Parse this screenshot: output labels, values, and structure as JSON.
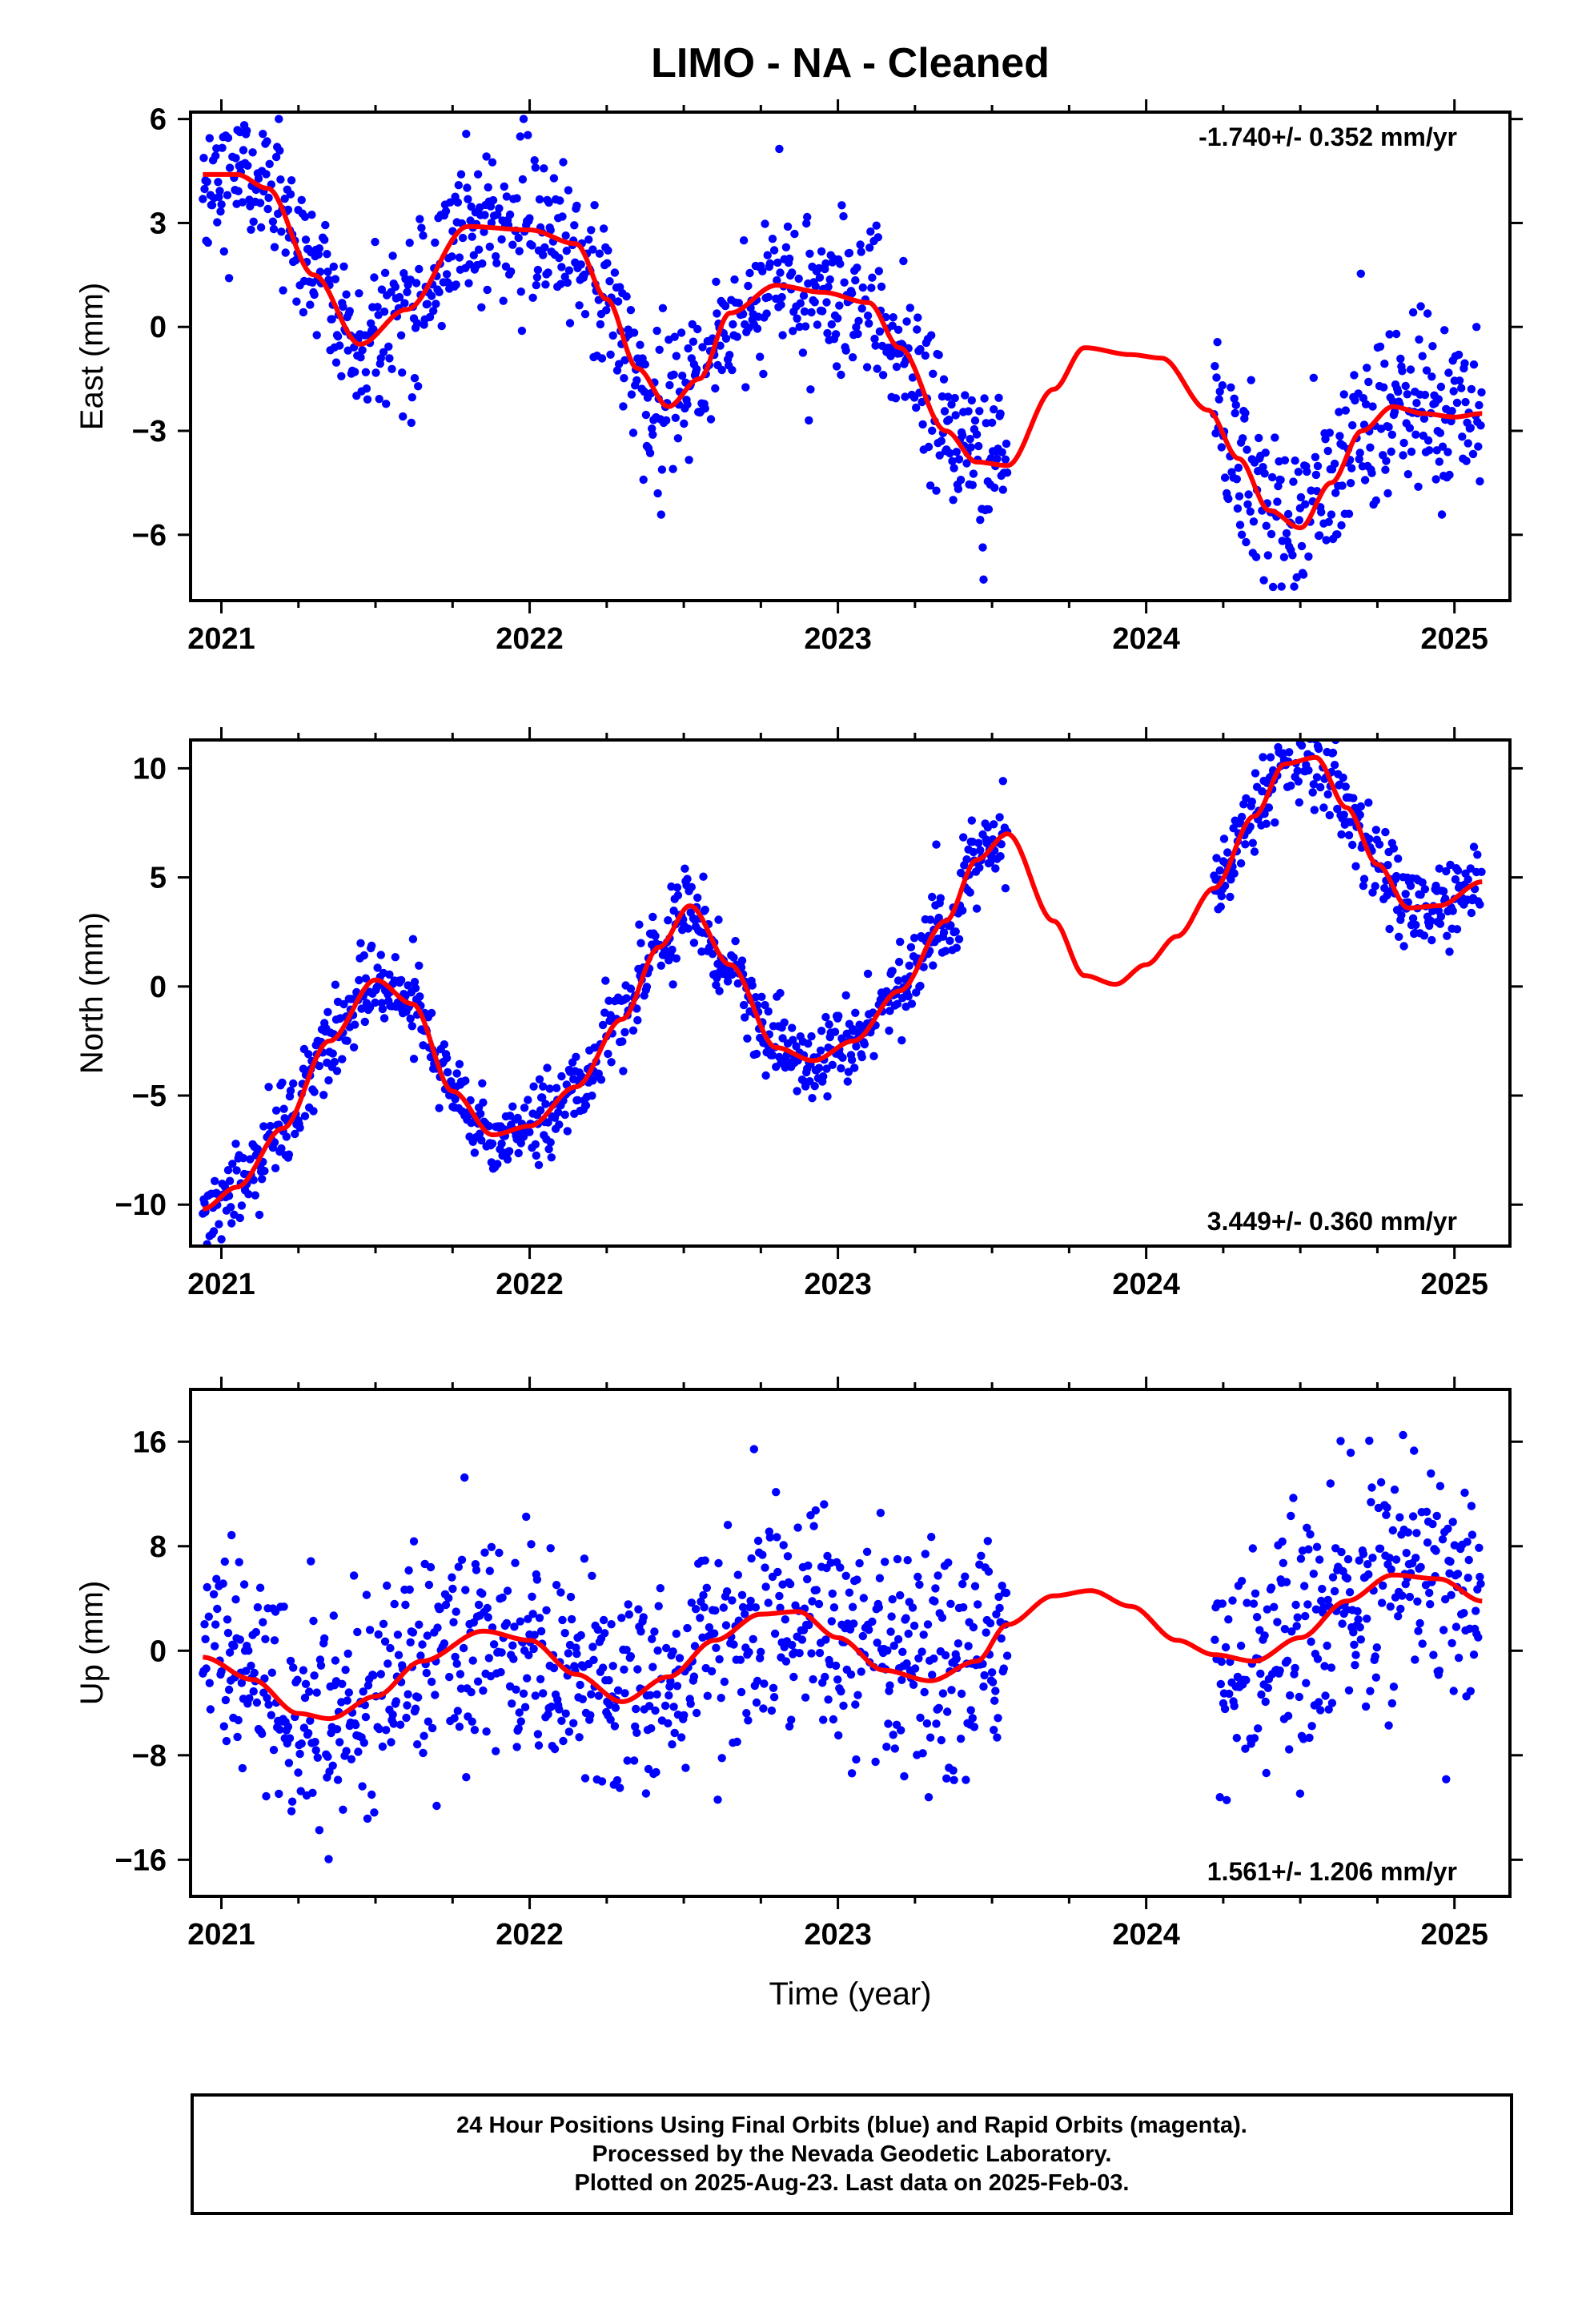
{
  "figure": {
    "title": "LIMO  - NA - Cleaned",
    "xlabel": "Time (year)",
    "footer": [
      "24 Hour Positions Using Final Orbits (blue) and Rapid Orbits (magenta).",
      "Processed by the Nevada Geodetic Laboratory.",
      "Plotted on 2025-Aug-23. Last data on 2025-Feb-03."
    ]
  },
  "colors": {
    "observations": "#0000ff",
    "model": "#ff0000",
    "frame": "#000000"
  },
  "chart_data": [
    {
      "type": "scatter",
      "ylabel": "East (mm)",
      "rate_text": "-1.740+/- 0.352 mm/yr",
      "rate_position": "top-right",
      "xlim": [
        2020.9,
        2025.18
      ],
      "ylim": [
        -7.9,
        6.2
      ],
      "xticks": [
        2021,
        2022,
        2023,
        2024,
        2025
      ],
      "xtick_labels": [
        "2021",
        "2022",
        "2023",
        "2024",
        "2025"
      ],
      "yticks": [
        -6,
        -3,
        0,
        3,
        6
      ],
      "ytick_labels": [
        "−6",
        "−3",
        "0",
        "3",
        "6"
      ],
      "data_segments": [
        [
          2020.94,
          2021.89
        ],
        [
          2021.89,
          2022.27
        ],
        [
          2022.27,
          2023.55
        ],
        [
          2024.22,
          2025.09
        ]
      ],
      "series": [
        {
          "kind": "observations",
          "model_knots": {
            "x": [
              2020.94,
              2021.05,
              2021.15,
              2021.3,
              2021.45,
              2021.6,
              2021.8,
              2022.0,
              2022.15,
              2022.25,
              2022.35,
              2022.45,
              2022.55,
              2022.65,
              2022.8,
              2022.95,
              2023.1,
              2023.2,
              2023.35,
              2023.45,
              2023.55
            ],
            "y": [
              4.4,
              4.4,
              4.0,
              1.5,
              -0.5,
              0.5,
              2.9,
              2.8,
              2.4,
              0.8,
              -1.2,
              -2.3,
              -1.5,
              0.4,
              1.2,
              1.0,
              0.7,
              -0.6,
              -3.0,
              -3.9,
              -4.0
            ]
          },
          "scatter_sigma": 1.1
        },
        {
          "kind": "observations",
          "model_knots": {
            "x": [
              2024.22,
              2024.3,
              2024.4,
              2024.5,
              2024.6,
              2024.7,
              2024.8,
              2024.9,
              2025.0,
              2025.09
            ],
            "y": [
              -2.5,
              -3.8,
              -5.3,
              -5.8,
              -4.5,
              -3.0,
              -2.3,
              -2.5,
              -2.6,
              -2.5
            ]
          },
          "scatter_sigma": 1.2
        },
        {
          "kind": "model",
          "x": [
            2020.94,
            2021.05,
            2021.15,
            2021.3,
            2021.45,
            2021.6,
            2021.8,
            2022.0,
            2022.15,
            2022.25,
            2022.35,
            2022.45,
            2022.55,
            2022.65,
            2022.8,
            2022.95,
            2023.1,
            2023.2,
            2023.35,
            2023.45,
            2023.55,
            2023.7,
            2023.8,
            2023.95,
            2024.05,
            2024.2,
            2024.3,
            2024.4,
            2024.5,
            2024.6,
            2024.7,
            2024.8,
            2024.9,
            2025.0,
            2025.09
          ],
          "y": [
            4.4,
            4.4,
            4.0,
            1.5,
            -0.5,
            0.5,
            2.9,
            2.8,
            2.4,
            0.8,
            -1.2,
            -2.3,
            -1.5,
            0.4,
            1.2,
            1.0,
            0.7,
            -0.6,
            -3.0,
            -3.9,
            -4.0,
            -1.8,
            -0.6,
            -0.8,
            -0.9,
            -2.4,
            -3.8,
            -5.3,
            -5.8,
            -4.5,
            -3.0,
            -2.3,
            -2.5,
            -2.6,
            -2.5
          ]
        }
      ]
    },
    {
      "type": "scatter",
      "ylabel": "North (mm)",
      "rate_text": "3.449+/- 0.360 mm/yr",
      "rate_position": "bottom-right",
      "xlim": [
        2020.9,
        2025.18
      ],
      "ylim": [
        -11.9,
        11.3
      ],
      "xticks": [
        2021,
        2022,
        2023,
        2024,
        2025
      ],
      "xtick_labels": [
        "2021",
        "2022",
        "2023",
        "2024",
        "2025"
      ],
      "yticks": [
        -10,
        -5,
        0,
        5,
        10
      ],
      "ytick_labels": [
        "−10",
        "−5",
        "0",
        "5",
        "10"
      ],
      "data_segments": [
        [
          2020.94,
          2021.89
        ],
        [
          2021.89,
          2022.27
        ],
        [
          2022.27,
          2023.55
        ],
        [
          2024.22,
          2025.09
        ]
      ],
      "series": [
        {
          "kind": "observations",
          "model_knots": {
            "x": [
              2020.94,
              2021.05,
              2021.2,
              2021.35,
              2021.5,
              2021.62,
              2021.75,
              2021.88,
              2022.0,
              2022.15,
              2022.3,
              2022.42,
              2022.52,
              2022.65,
              2022.8,
              2022.92,
              2023.05,
              2023.2,
              2023.35,
              2023.45,
              2023.55
            ],
            "y": [
              -10.2,
              -9.2,
              -6.5,
              -2.5,
              0.3,
              -0.8,
              -4.8,
              -6.8,
              -6.4,
              -4.6,
              -1.5,
              1.8,
              3.7,
              1.0,
              -2.8,
              -3.4,
              -2.5,
              -0.2,
              3.0,
              5.8,
              7.0
            ]
          },
          "scatter_sigma": 0.9
        },
        {
          "kind": "observations",
          "model_knots": {
            "x": [
              2024.22,
              2024.35,
              2024.45,
              2024.55,
              2024.65,
              2024.75,
              2024.85,
              2024.95,
              2025.09
            ],
            "y": [
              4.5,
              7.8,
              10.2,
              10.5,
              8.2,
              5.6,
              3.6,
              3.7,
              4.8
            ]
          },
          "scatter_sigma": 1.0
        },
        {
          "kind": "model",
          "x": [
            2020.94,
            2021.05,
            2021.2,
            2021.35,
            2021.5,
            2021.62,
            2021.75,
            2021.88,
            2022.0,
            2022.15,
            2022.3,
            2022.42,
            2022.52,
            2022.65,
            2022.8,
            2022.92,
            2023.05,
            2023.2,
            2023.35,
            2023.45,
            2023.55,
            2023.7,
            2023.8,
            2023.9,
            2024.0,
            2024.1,
            2024.22,
            2024.35,
            2024.45,
            2024.55,
            2024.65,
            2024.75,
            2024.85,
            2024.95,
            2025.09
          ],
          "y": [
            -10.2,
            -9.2,
            -6.5,
            -2.5,
            0.3,
            -0.8,
            -4.8,
            -6.8,
            -6.4,
            -4.6,
            -1.5,
            1.8,
            3.7,
            1.0,
            -2.8,
            -3.4,
            -2.5,
            -0.2,
            3.0,
            5.8,
            7.0,
            3.0,
            0.5,
            0.1,
            1.0,
            2.3,
            4.5,
            7.8,
            10.2,
            10.5,
            8.2,
            5.6,
            3.6,
            3.7,
            4.8
          ]
        }
      ]
    },
    {
      "type": "scatter",
      "ylabel": "Up (mm)",
      "rate_text": "1.561+/- 1.206 mm/yr",
      "rate_position": "bottom-right",
      "xlim": [
        2020.9,
        2025.18
      ],
      "ylim": [
        -18.8,
        20.0
      ],
      "xticks": [
        2021,
        2022,
        2023,
        2024,
        2025
      ],
      "xtick_labels": [
        "2021",
        "2022",
        "2023",
        "2024",
        "2025"
      ],
      "yticks": [
        -16,
        -8,
        0,
        8,
        16
      ],
      "ytick_labels": [
        "−16",
        "−8",
        "0",
        "8",
        "16"
      ],
      "data_segments": [
        [
          2020.94,
          2021.89
        ],
        [
          2021.89,
          2022.27
        ],
        [
          2022.27,
          2023.55
        ],
        [
          2024.22,
          2025.09
        ]
      ],
      "series": [
        {
          "kind": "observations",
          "model_knots": {
            "x": [
              2020.94,
              2021.1,
              2021.25,
              2021.35,
              2021.5,
              2021.65,
              2021.85,
              2022.0,
              2022.15,
              2022.3,
              2022.45,
              2022.6,
              2022.75,
              2022.87,
              2023.0,
              2023.15,
              2023.3,
              2023.45,
              2023.55
            ],
            "y": [
              -0.5,
              -2.2,
              -4.8,
              -5.2,
              -3.5,
              -0.8,
              1.5,
              0.8,
              -1.8,
              -3.9,
              -2.0,
              0.8,
              2.8,
              3.0,
              1.0,
              -1.5,
              -2.3,
              -0.8,
              2.0
            ]
          },
          "scatter_sigma": 4.2
        },
        {
          "kind": "observations",
          "model_knots": {
            "x": [
              2024.22,
              2024.35,
              2024.5,
              2024.65,
              2024.8,
              2024.95,
              2025.09
            ],
            "y": [
              -0.3,
              -0.8,
              1.0,
              3.8,
              5.8,
              5.5,
              3.8
            ]
          },
          "scatter_sigma": 4.5
        },
        {
          "kind": "model",
          "x": [
            2020.94,
            2021.1,
            2021.25,
            2021.35,
            2021.5,
            2021.65,
            2021.85,
            2022.0,
            2022.15,
            2022.3,
            2022.45,
            2022.6,
            2022.75,
            2022.87,
            2023.0,
            2023.15,
            2023.3,
            2023.45,
            2023.55,
            2023.7,
            2023.82,
            2023.95,
            2024.1,
            2024.22,
            2024.35,
            2024.5,
            2024.65,
            2024.8,
            2024.95,
            2025.09
          ],
          "y": [
            -0.5,
            -2.2,
            -4.8,
            -5.2,
            -3.5,
            -0.8,
            1.5,
            0.8,
            -1.8,
            -3.9,
            -2.0,
            0.8,
            2.8,
            3.0,
            1.0,
            -1.5,
            -2.3,
            -0.8,
            2.0,
            4.2,
            4.6,
            3.4,
            0.8,
            -0.3,
            -0.8,
            1.0,
            3.8,
            5.8,
            5.5,
            3.8
          ]
        }
      ]
    }
  ]
}
